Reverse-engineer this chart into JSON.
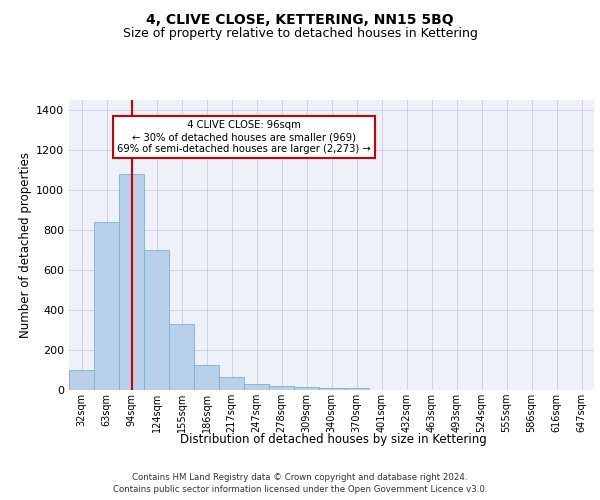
{
  "title": "4, CLIVE CLOSE, KETTERING, NN15 5BQ",
  "subtitle": "Size of property relative to detached houses in Kettering",
  "xlabel": "Distribution of detached houses by size in Kettering",
  "ylabel": "Number of detached properties",
  "footer_line1": "Contains HM Land Registry data © Crown copyright and database right 2024.",
  "footer_line2": "Contains public sector information licensed under the Open Government Licence v3.0.",
  "categories": [
    "32sqm",
    "63sqm",
    "94sqm",
    "124sqm",
    "155sqm",
    "186sqm",
    "217sqm",
    "247sqm",
    "278sqm",
    "309sqm",
    "340sqm",
    "370sqm",
    "401sqm",
    "432sqm",
    "463sqm",
    "493sqm",
    "524sqm",
    "555sqm",
    "586sqm",
    "616sqm",
    "647sqm"
  ],
  "values": [
    100,
    840,
    1080,
    700,
    330,
    125,
    65,
    30,
    20,
    15,
    10,
    10,
    0,
    0,
    0,
    0,
    0,
    0,
    0,
    0,
    0
  ],
  "bar_color": "#b8d0ea",
  "bar_edge_color": "#7aafd4",
  "red_line_x": 2.0,
  "red_line_color": "#cc0000",
  "annotation_text": "  4 CLIVE CLOSE: 96sqm  \n← 30% of detached houses are smaller (969)\n69% of semi-detached houses are larger (2,273) →",
  "annotation_box_color": "#ffffff",
  "annotation_box_edge": "#cc0000",
  "ylim": [
    0,
    1450
  ],
  "yticks": [
    0,
    200,
    400,
    600,
    800,
    1000,
    1200,
    1400
  ],
  "bg_color": "#eef2f8",
  "grid_color": "#c5cee0",
  "title_fontsize": 10,
  "subtitle_fontsize": 9,
  "axis_label_fontsize": 8.5,
  "tick_fontsize": 7,
  "footer_fontsize": 6.2
}
